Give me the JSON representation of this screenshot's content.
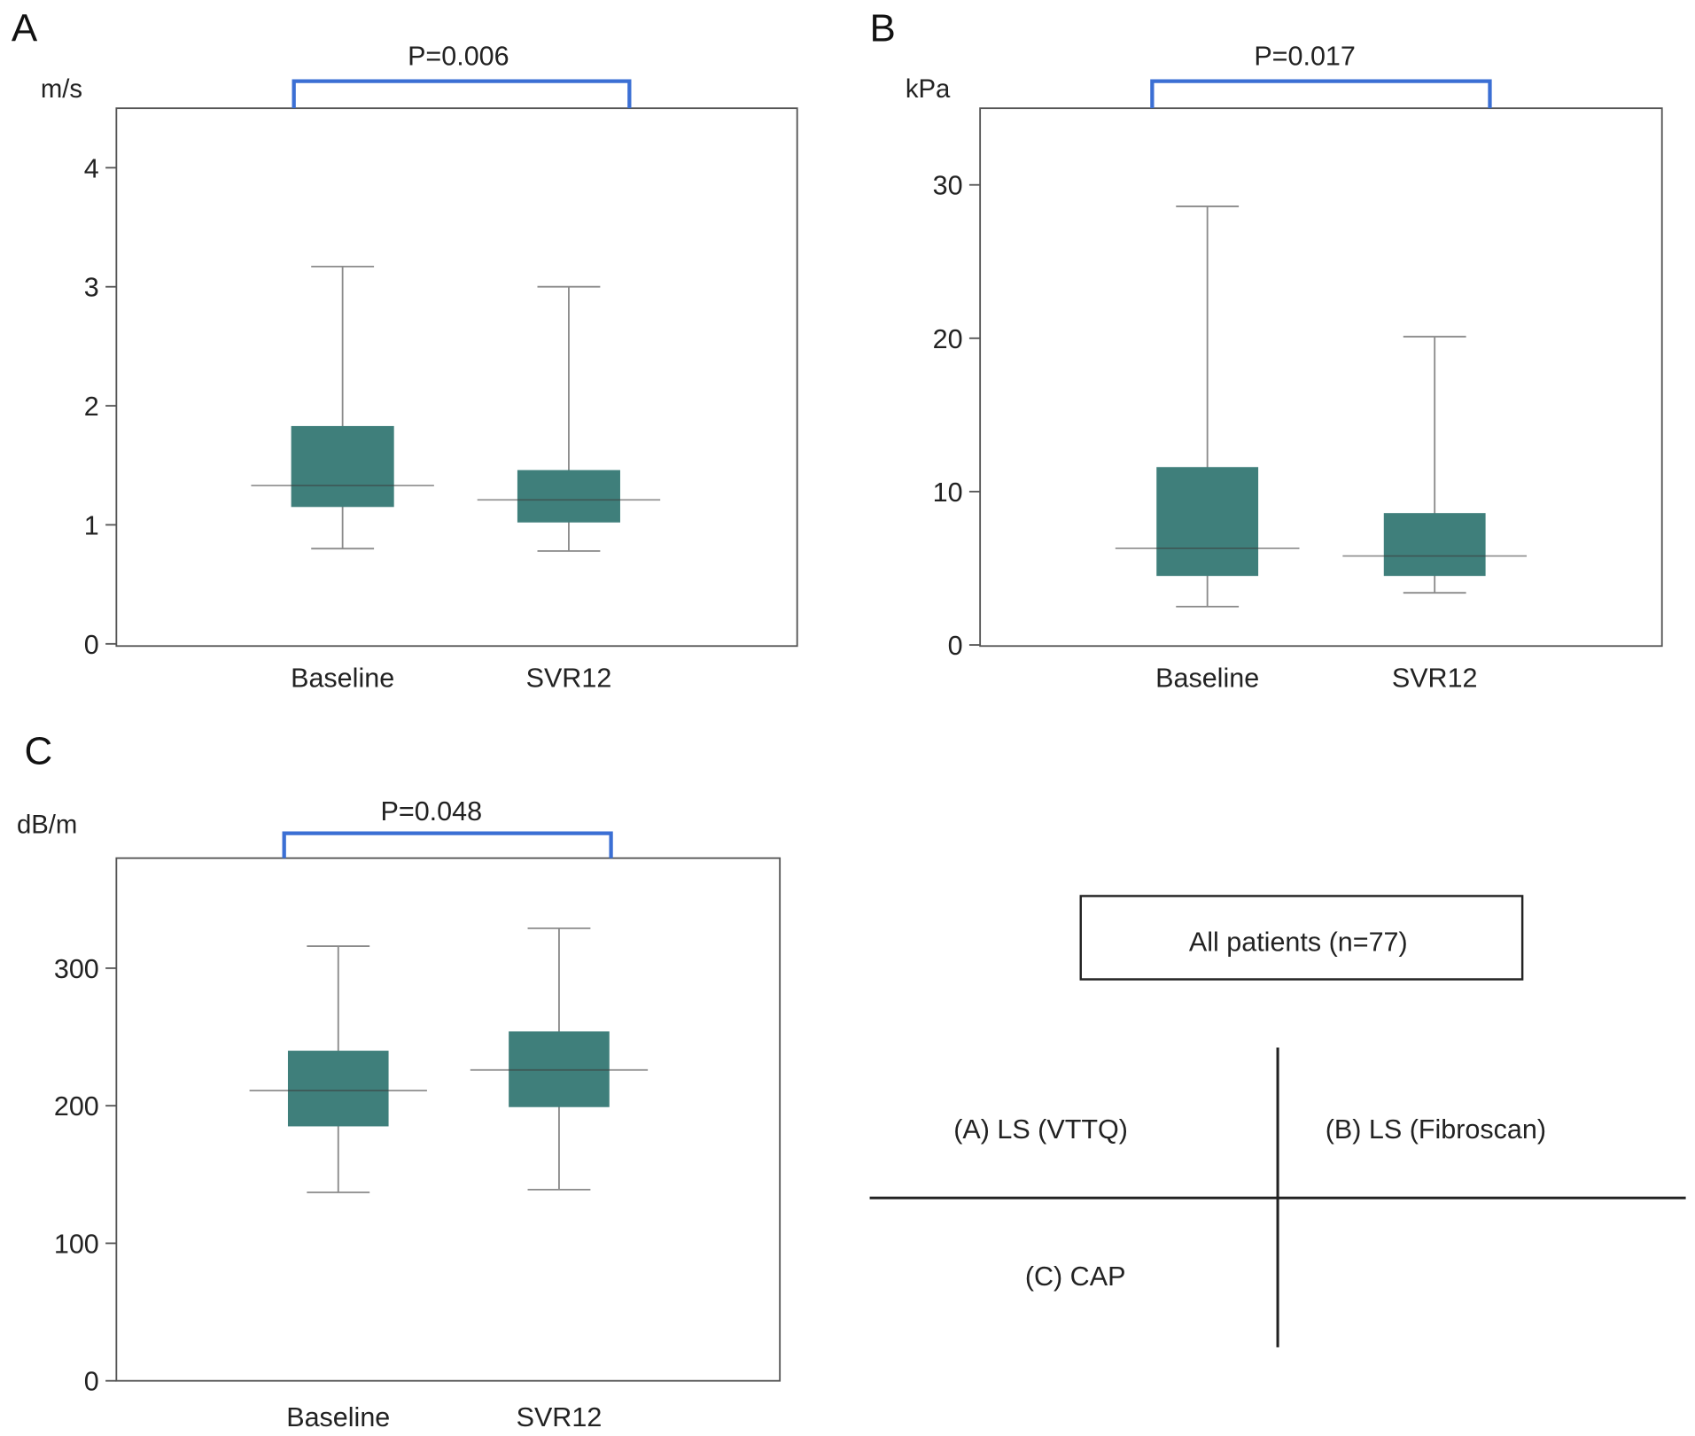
{
  "colors": {
    "box": "#3f7f7b",
    "bracket": "#3b6fd4",
    "whisker": "#8a8a8a",
    "frame": "#555555"
  },
  "chart_data": [
    {
      "type": "boxplot",
      "panel": "A",
      "ylabel": "m/s",
      "ylim": [
        0,
        4.5
      ],
      "yticks": [
        "0",
        "1",
        "2",
        "3",
        "4"
      ],
      "categories": [
        "Baseline",
        "SVR12"
      ],
      "boxes": [
        {
          "min": 0.8,
          "q1": 1.15,
          "median": 1.33,
          "q3": 1.83,
          "max": 3.17
        },
        {
          "min": 0.78,
          "q1": 1.02,
          "median": 1.21,
          "q3": 1.46,
          "max": 3.0
        }
      ],
      "annotation": "P=0.006"
    },
    {
      "type": "boxplot",
      "panel": "B",
      "ylabel": "kPa",
      "ylim": [
        0,
        35
      ],
      "yticks": [
        "0",
        "10",
        "20",
        "30"
      ],
      "categories": [
        "Baseline",
        "SVR12"
      ],
      "boxes": [
        {
          "min": 2.5,
          "q1": 4.5,
          "median": 6.3,
          "q3": 11.6,
          "max": 28.6
        },
        {
          "min": 3.4,
          "q1": 4.5,
          "median": 5.8,
          "q3": 8.6,
          "max": 20.1
        }
      ],
      "annotation": "P=0.017"
    },
    {
      "type": "boxplot",
      "panel": "C",
      "ylabel": "dB/m",
      "ylim": [
        0,
        380
      ],
      "yticks": [
        "0",
        "100",
        "200",
        "300"
      ],
      "categories": [
        "Baseline",
        "SVR12"
      ],
      "boxes": [
        {
          "min": 137,
          "q1": 185,
          "median": 211,
          "q3": 240,
          "max": 316
        },
        {
          "min": 139,
          "q1": 199,
          "median": 226,
          "q3": 254,
          "max": 329
        }
      ],
      "annotation": "P=0.048"
    }
  ],
  "legend": {
    "title": "All patients (n=77)",
    "a": "(A) LS (VTTQ)",
    "b": "(B) LS (Fibroscan)",
    "c": "(C) CAP"
  }
}
